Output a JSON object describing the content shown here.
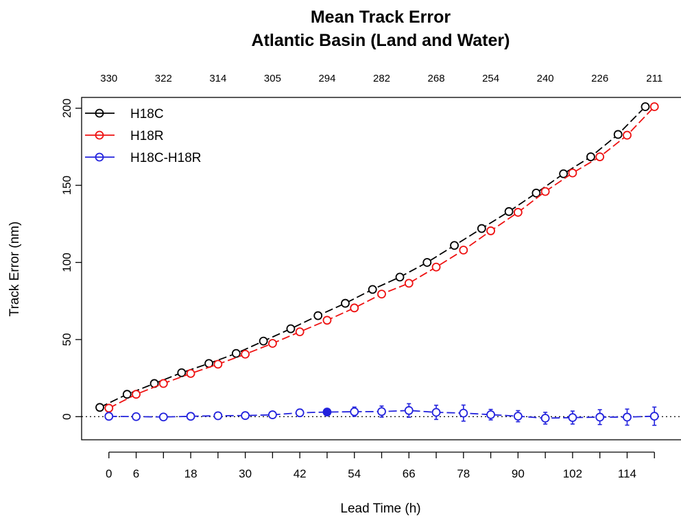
{
  "chart_data": {
    "type": "line",
    "title": "Mean Track Error",
    "subtitle": "Atlantic Basin (Land and Water)",
    "xlabel": "Lead Time (h)",
    "ylabel": "Track Error (nm)",
    "x_ticks": [
      "0",
      "6",
      "18",
      "30",
      "42",
      "54",
      "66",
      "78",
      "90",
      "102",
      "114"
    ],
    "y_ticks": [
      "0",
      "50",
      "100",
      "150",
      "200"
    ],
    "ylim": [
      -15,
      207
    ],
    "xlim": [
      -6,
      126
    ],
    "sample_counts": [
      "330",
      "322",
      "314",
      "305",
      "294",
      "282",
      "268",
      "254",
      "240",
      "226",
      "211"
    ],
    "legend_position": "top-left",
    "grid": false,
    "zero_reference_line": "dotted",
    "series": [
      {
        "name": "H18C",
        "color": "#000000",
        "marker": "open-circle",
        "x": [
          0,
          6,
          12,
          18,
          24,
          30,
          36,
          42,
          48,
          54,
          60,
          66,
          72,
          78,
          84,
          90,
          96,
          102,
          108,
          114,
          120
        ],
        "values": [
          6,
          14.5,
          21.5,
          28.5,
          34.5,
          41,
          49,
          57,
          65.5,
          73.5,
          82.5,
          90.5,
          100,
          111,
          122,
          133,
          145,
          157.5,
          168.5,
          183,
          201
        ]
      },
      {
        "name": "H18R",
        "color": "#ee1111",
        "marker": "open-circle",
        "x": [
          0,
          6,
          12,
          18,
          24,
          30,
          36,
          42,
          48,
          54,
          60,
          66,
          72,
          78,
          84,
          90,
          96,
          102,
          108,
          114,
          120
        ],
        "values": [
          5.5,
          14.5,
          21.5,
          28,
          34,
          40.5,
          47.5,
          55,
          62.5,
          70.5,
          79.5,
          86.5,
          97,
          108,
          120.5,
          132.5,
          146,
          158,
          168.5,
          182.5,
          201
        ]
      },
      {
        "name": "H18C-H18R",
        "color": "#2222dd",
        "marker": "open-circle-with-error-bars",
        "x": [
          0,
          6,
          12,
          18,
          24,
          30,
          36,
          42,
          48,
          54,
          60,
          66,
          72,
          78,
          84,
          90,
          96,
          102,
          108,
          114,
          120
        ],
        "values": [
          0.2,
          0,
          -0.2,
          0.2,
          0.6,
          0.7,
          1.2,
          2.5,
          3,
          3.2,
          3.3,
          4,
          2.8,
          2.3,
          1.3,
          0.3,
          -1,
          -0.6,
          -0.3,
          -0.3,
          0.3
        ],
        "error": [
          0.4,
          0.6,
          0.8,
          1,
          1.3,
          1.6,
          1.9,
          2.3,
          0,
          3,
          3.6,
          4.4,
          4.6,
          5.2,
          3.4,
          3.6,
          3.8,
          4.2,
          4.8,
          5.2,
          5.9
        ],
        "significant_index": 8
      }
    ]
  }
}
